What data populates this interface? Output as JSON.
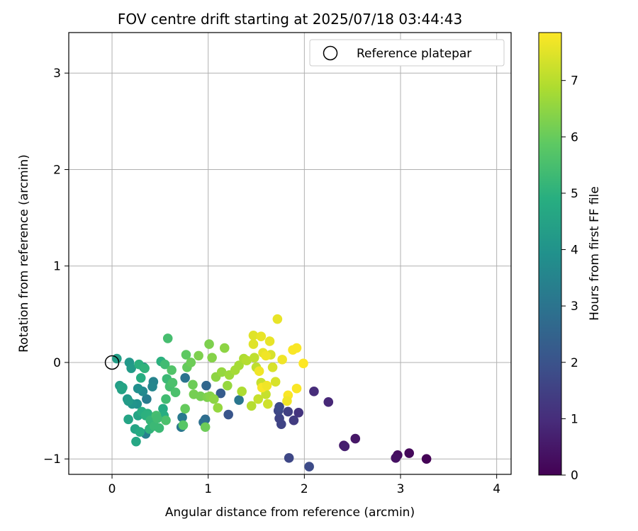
{
  "chart_data": {
    "type": "scatter",
    "title": "FOV centre drift starting at 2025/07/18 03:44:43",
    "xlabel": "Angular distance from reference (arcmin)",
    "ylabel": "Rotation from reference (arcmin)",
    "xlim": [
      -0.45,
      4.15
    ],
    "ylim": [
      -1.16,
      3.42
    ],
    "xticks": [
      0,
      1,
      2,
      3,
      4
    ],
    "xtick_labels": [
      "0",
      "1",
      "2",
      "3",
      "4"
    ],
    "yticks": [
      -1,
      0,
      1,
      2,
      3
    ],
    "ytick_labels": [
      "−1",
      "0",
      "1",
      "2",
      "3"
    ],
    "grid": true,
    "legend": {
      "placement": "top-right",
      "entries": [
        "Reference platepar"
      ]
    },
    "reference_point": {
      "x": 0,
      "y": 0,
      "marker": "open-circle"
    },
    "colorbar": {
      "label": "Hours from first FF file",
      "range": [
        0,
        7.85
      ],
      "ticks": [
        0,
        1,
        2,
        3,
        4,
        5,
        6,
        7
      ],
      "tick_labels": [
        "0",
        "1",
        "2",
        "3",
        "4",
        "5",
        "6",
        "7"
      ],
      "colormap": "viridis"
    },
    "points": [
      {
        "x": 3.27,
        "y": -1.0,
        "c": 0.05
      },
      {
        "x": 3.09,
        "y": -0.94,
        "c": 0.15
      },
      {
        "x": 2.97,
        "y": -0.96,
        "c": 0.25
      },
      {
        "x": 2.95,
        "y": -0.99,
        "c": 0.35
      },
      {
        "x": 2.53,
        "y": -0.79,
        "c": 0.5
      },
      {
        "x": 2.41,
        "y": -0.86,
        "c": 0.6
      },
      {
        "x": 2.42,
        "y": -0.87,
        "c": 0.7
      },
      {
        "x": 2.25,
        "y": -0.41,
        "c": 0.9
      },
      {
        "x": 2.1,
        "y": -0.3,
        "c": 1.0
      },
      {
        "x": 1.94,
        "y": -0.52,
        "c": 1.2
      },
      {
        "x": 2.05,
        "y": -1.08,
        "c": 1.8
      },
      {
        "x": 1.84,
        "y": -0.99,
        "c": 1.7
      },
      {
        "x": 1.89,
        "y": -0.6,
        "c": 1.4
      },
      {
        "x": 1.83,
        "y": -0.51,
        "c": 1.5
      },
      {
        "x": 1.76,
        "y": -0.64,
        "c": 1.6
      },
      {
        "x": 1.74,
        "y": -0.58,
        "c": 1.6
      },
      {
        "x": 1.73,
        "y": -0.5,
        "c": 1.7
      },
      {
        "x": 1.74,
        "y": -0.46,
        "c": 1.8
      },
      {
        "x": 1.21,
        "y": -0.54,
        "c": 2.1
      },
      {
        "x": 1.13,
        "y": -0.32,
        "c": 2.3
      },
      {
        "x": 0.98,
        "y": -0.24,
        "c": 2.6
      },
      {
        "x": 0.97,
        "y": -0.59,
        "c": 2.8
      },
      {
        "x": 0.95,
        "y": -0.62,
        "c": 2.9
      },
      {
        "x": 0.76,
        "y": -0.16,
        "c": 3.0
      },
      {
        "x": 0.72,
        "y": -0.67,
        "c": 3.1
      },
      {
        "x": 0.73,
        "y": -0.57,
        "c": 3.2
      },
      {
        "x": 1.32,
        "y": -0.39,
        "c": 3.1
      },
      {
        "x": 0.35,
        "y": -0.74,
        "c": 3.4
      },
      {
        "x": 0.36,
        "y": -0.38,
        "c": 3.3
      },
      {
        "x": 0.43,
        "y": -0.2,
        "c": 3.5
      },
      {
        "x": 0.42,
        "y": -0.25,
        "c": 3.6
      },
      {
        "x": 0.33,
        "y": -0.05,
        "c": 3.5
      },
      {
        "x": 0.32,
        "y": -0.3,
        "c": 3.7
      },
      {
        "x": 0.27,
        "y": -0.27,
        "c": 3.9
      },
      {
        "x": 0.26,
        "y": -0.43,
        "c": 4.0
      },
      {
        "x": 0.21,
        "y": -0.43,
        "c": 4.1
      },
      {
        "x": 0.16,
        "y": -0.38,
        "c": 4.2
      },
      {
        "x": 0.17,
        "y": -0.4,
        "c": 4.3
      },
      {
        "x": 0.18,
        "y": 0.0,
        "c": 4.2
      },
      {
        "x": 0.2,
        "y": -0.06,
        "c": 4.3
      },
      {
        "x": 0.05,
        "y": 0.04,
        "c": 4.4
      },
      {
        "x": 0.08,
        "y": -0.24,
        "c": 4.4
      },
      {
        "x": 0.1,
        "y": -0.28,
        "c": 4.5
      },
      {
        "x": 0.11,
        "y": -0.26,
        "c": 4.6
      },
      {
        "x": 0.17,
        "y": -0.59,
        "c": 4.6
      },
      {
        "x": 0.24,
        "y": -0.69,
        "c": 4.6
      },
      {
        "x": 0.25,
        "y": -0.82,
        "c": 4.7
      },
      {
        "x": 0.27,
        "y": -0.55,
        "c": 4.6
      },
      {
        "x": 0.29,
        "y": -0.72,
        "c": 4.8
      },
      {
        "x": 0.31,
        "y": -0.51,
        "c": 4.9
      },
      {
        "x": 0.35,
        "y": -0.55,
        "c": 5.0
      },
      {
        "x": 0.37,
        "y": -0.53,
        "c": 5.0
      },
      {
        "x": 0.39,
        "y": -0.69,
        "c": 5.1
      },
      {
        "x": 0.4,
        "y": -0.6,
        "c": 5.2
      },
      {
        "x": 0.44,
        "y": -0.66,
        "c": 5.3
      },
      {
        "x": 0.49,
        "y": -0.68,
        "c": 5.3
      },
      {
        "x": 0.51,
        "y": 0.01,
        "c": 5.0
      },
      {
        "x": 0.53,
        "y": -0.48,
        "c": 4.8
      },
      {
        "x": 0.54,
        "y": -0.55,
        "c": 4.9
      },
      {
        "x": 0.56,
        "y": -0.6,
        "c": 5.6
      },
      {
        "x": 0.56,
        "y": -0.38,
        "c": 5.4
      },
      {
        "x": 0.57,
        "y": -0.17,
        "c": 5.3
      },
      {
        "x": 0.58,
        "y": 0.25,
        "c": 5.5
      },
      {
        "x": 0.55,
        "y": -0.02,
        "c": 5.4
      },
      {
        "x": 0.6,
        "y": -0.25,
        "c": 5.5
      },
      {
        "x": 0.63,
        "y": -0.21,
        "c": 5.6
      },
      {
        "x": 0.66,
        "y": -0.31,
        "c": 5.6
      },
      {
        "x": 0.28,
        "y": -0.02,
        "c": 5.0
      },
      {
        "x": 0.3,
        "y": -0.16,
        "c": 4.9
      },
      {
        "x": 0.46,
        "y": -0.55,
        "c": 5.5
      },
      {
        "x": 0.47,
        "y": -0.58,
        "c": 5.4
      },
      {
        "x": 0.34,
        "y": -0.06,
        "c": 5.1
      },
      {
        "x": 0.62,
        "y": -0.08,
        "c": 5.7
      },
      {
        "x": 0.74,
        "y": -0.65,
        "c": 5.8
      },
      {
        "x": 0.77,
        "y": 0.08,
        "c": 5.9
      },
      {
        "x": 0.78,
        "y": -0.05,
        "c": 6.0
      },
      {
        "x": 0.76,
        "y": -0.48,
        "c": 6.0
      },
      {
        "x": 0.82,
        "y": 0.0,
        "c": 6.1
      },
      {
        "x": 0.84,
        "y": -0.23,
        "c": 6.1
      },
      {
        "x": 0.85,
        "y": -0.33,
        "c": 6.2
      },
      {
        "x": 0.9,
        "y": 0.07,
        "c": 6.3
      },
      {
        "x": 0.92,
        "y": -0.35,
        "c": 6.2
      },
      {
        "x": 0.97,
        "y": -0.67,
        "c": 6.1
      },
      {
        "x": 0.99,
        "y": -0.36,
        "c": 6.3
      },
      {
        "x": 1.01,
        "y": 0.19,
        "c": 6.3
      },
      {
        "x": 1.02,
        "y": -0.35,
        "c": 6.4
      },
      {
        "x": 1.04,
        "y": 0.05,
        "c": 6.4
      },
      {
        "x": 1.06,
        "y": -0.38,
        "c": 6.5
      },
      {
        "x": 1.08,
        "y": -0.15,
        "c": 6.5
      },
      {
        "x": 1.1,
        "y": -0.47,
        "c": 6.6
      },
      {
        "x": 1.14,
        "y": -0.1,
        "c": 6.6
      },
      {
        "x": 1.17,
        "y": 0.15,
        "c": 6.5
      },
      {
        "x": 1.2,
        "y": -0.24,
        "c": 6.6
      },
      {
        "x": 1.22,
        "y": -0.13,
        "c": 6.7
      },
      {
        "x": 1.28,
        "y": -0.08,
        "c": 6.8
      },
      {
        "x": 1.32,
        "y": -0.03,
        "c": 6.8
      },
      {
        "x": 1.35,
        "y": -0.3,
        "c": 6.9
      },
      {
        "x": 1.37,
        "y": 0.04,
        "c": 6.9
      },
      {
        "x": 1.4,
        "y": 0.02,
        "c": 7.0
      },
      {
        "x": 1.45,
        "y": -0.45,
        "c": 7.0
      },
      {
        "x": 1.48,
        "y": 0.05,
        "c": 7.1
      },
      {
        "x": 1.5,
        "y": -0.05,
        "c": 7.1
      },
      {
        "x": 1.52,
        "y": -0.38,
        "c": 7.2
      },
      {
        "x": 1.55,
        "y": -0.21,
        "c": 7.2
      },
      {
        "x": 1.58,
        "y": -0.27,
        "c": 7.3
      },
      {
        "x": 1.6,
        "y": -0.33,
        "c": 7.2
      },
      {
        "x": 1.62,
        "y": -0.43,
        "c": 7.3
      },
      {
        "x": 1.65,
        "y": 0.08,
        "c": 7.4
      },
      {
        "x": 1.67,
        "y": -0.05,
        "c": 7.4
      },
      {
        "x": 1.7,
        "y": -0.2,
        "c": 7.4
      },
      {
        "x": 1.72,
        "y": 0.45,
        "c": 7.6
      },
      {
        "x": 1.47,
        "y": 0.28,
        "c": 7.5
      },
      {
        "x": 1.47,
        "y": 0.19,
        "c": 7.5
      },
      {
        "x": 1.55,
        "y": 0.27,
        "c": 7.6
      },
      {
        "x": 1.57,
        "y": 0.1,
        "c": 7.6
      },
      {
        "x": 1.6,
        "y": 0.07,
        "c": 7.7
      },
      {
        "x": 1.64,
        "y": 0.22,
        "c": 7.6
      },
      {
        "x": 1.53,
        "y": -0.09,
        "c": 7.7
      },
      {
        "x": 1.56,
        "y": -0.26,
        "c": 7.8
      },
      {
        "x": 1.61,
        "y": -0.24,
        "c": 7.7
      },
      {
        "x": 1.77,
        "y": 0.03,
        "c": 7.7
      },
      {
        "x": 1.83,
        "y": -0.34,
        "c": 7.8
      },
      {
        "x": 1.82,
        "y": -0.4,
        "c": 7.7
      },
      {
        "x": 1.88,
        "y": 0.13,
        "c": 7.8
      },
      {
        "x": 1.92,
        "y": 0.15,
        "c": 7.8
      },
      {
        "x": 1.92,
        "y": -0.27,
        "c": 7.8
      },
      {
        "x": 1.99,
        "y": -0.01,
        "c": 7.85
      }
    ]
  }
}
